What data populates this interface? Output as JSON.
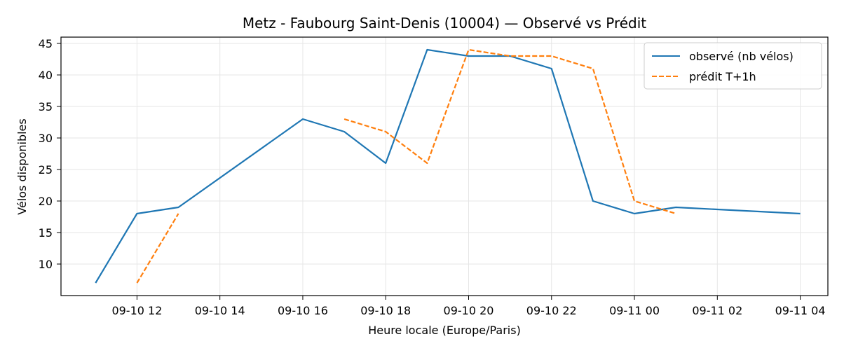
{
  "chart_data": {
    "type": "line",
    "title": "Metz - Faubourg Saint-Denis (10004) — Observé vs Prédit",
    "xlabel": "Heure locale (Europe/Paris)",
    "ylabel": "Vélos disponibles",
    "x_ticks": [
      "09-10 12",
      "09-10 14",
      "09-10 16",
      "09-10 18",
      "09-10 20",
      "09-10 22",
      "09-11 00",
      "09-11 02",
      "09-11 04"
    ],
    "y_ticks": [
      10,
      15,
      20,
      25,
      30,
      35,
      40,
      45
    ],
    "xlim": [
      "09-10 10:10",
      "09-11 04:40"
    ],
    "ylim": [
      5,
      46
    ],
    "grid": true,
    "legend_position": "top-right",
    "series": [
      {
        "name": "observé (nb vélos)",
        "color": "#1f77b4",
        "style": "solid",
        "points": [
          {
            "x": "09-10 11:00",
            "y": 7
          },
          {
            "x": "09-10 12:00",
            "y": 18
          },
          {
            "x": "09-10 13:00",
            "y": 19
          },
          {
            "x": "09-10 16:00",
            "y": 33
          },
          {
            "x": "09-10 17:00",
            "y": 31
          },
          {
            "x": "09-10 18:00",
            "y": 26
          },
          {
            "x": "09-10 19:00",
            "y": 44
          },
          {
            "x": "09-10 20:00",
            "y": 43
          },
          {
            "x": "09-10 21:00",
            "y": 43
          },
          {
            "x": "09-10 22:00",
            "y": 41
          },
          {
            "x": "09-10 23:00",
            "y": 20
          },
          {
            "x": "09-11 00:00",
            "y": 18
          },
          {
            "x": "09-11 01:00",
            "y": 19
          },
          {
            "x": "09-11 04:00",
            "y": 18
          }
        ]
      },
      {
        "name": "prédit T+1h",
        "color": "#ff7f0e",
        "style": "dashed",
        "segments": [
          [
            {
              "x": "09-10 12:00",
              "y": 7
            },
            {
              "x": "09-10 13:00",
              "y": 18
            }
          ],
          [
            {
              "x": "09-10 17:00",
              "y": 33
            },
            {
              "x": "09-10 18:00",
              "y": 31
            },
            {
              "x": "09-10 19:00",
              "y": 26
            },
            {
              "x": "09-10 20:00",
              "y": 44
            },
            {
              "x": "09-10 21:00",
              "y": 43
            },
            {
              "x": "09-10 22:00",
              "y": 43
            },
            {
              "x": "09-10 23:00",
              "y": 41
            },
            {
              "x": "09-11 00:00",
              "y": 20
            },
            {
              "x": "09-11 01:00",
              "y": 18
            }
          ]
        ]
      }
    ]
  }
}
